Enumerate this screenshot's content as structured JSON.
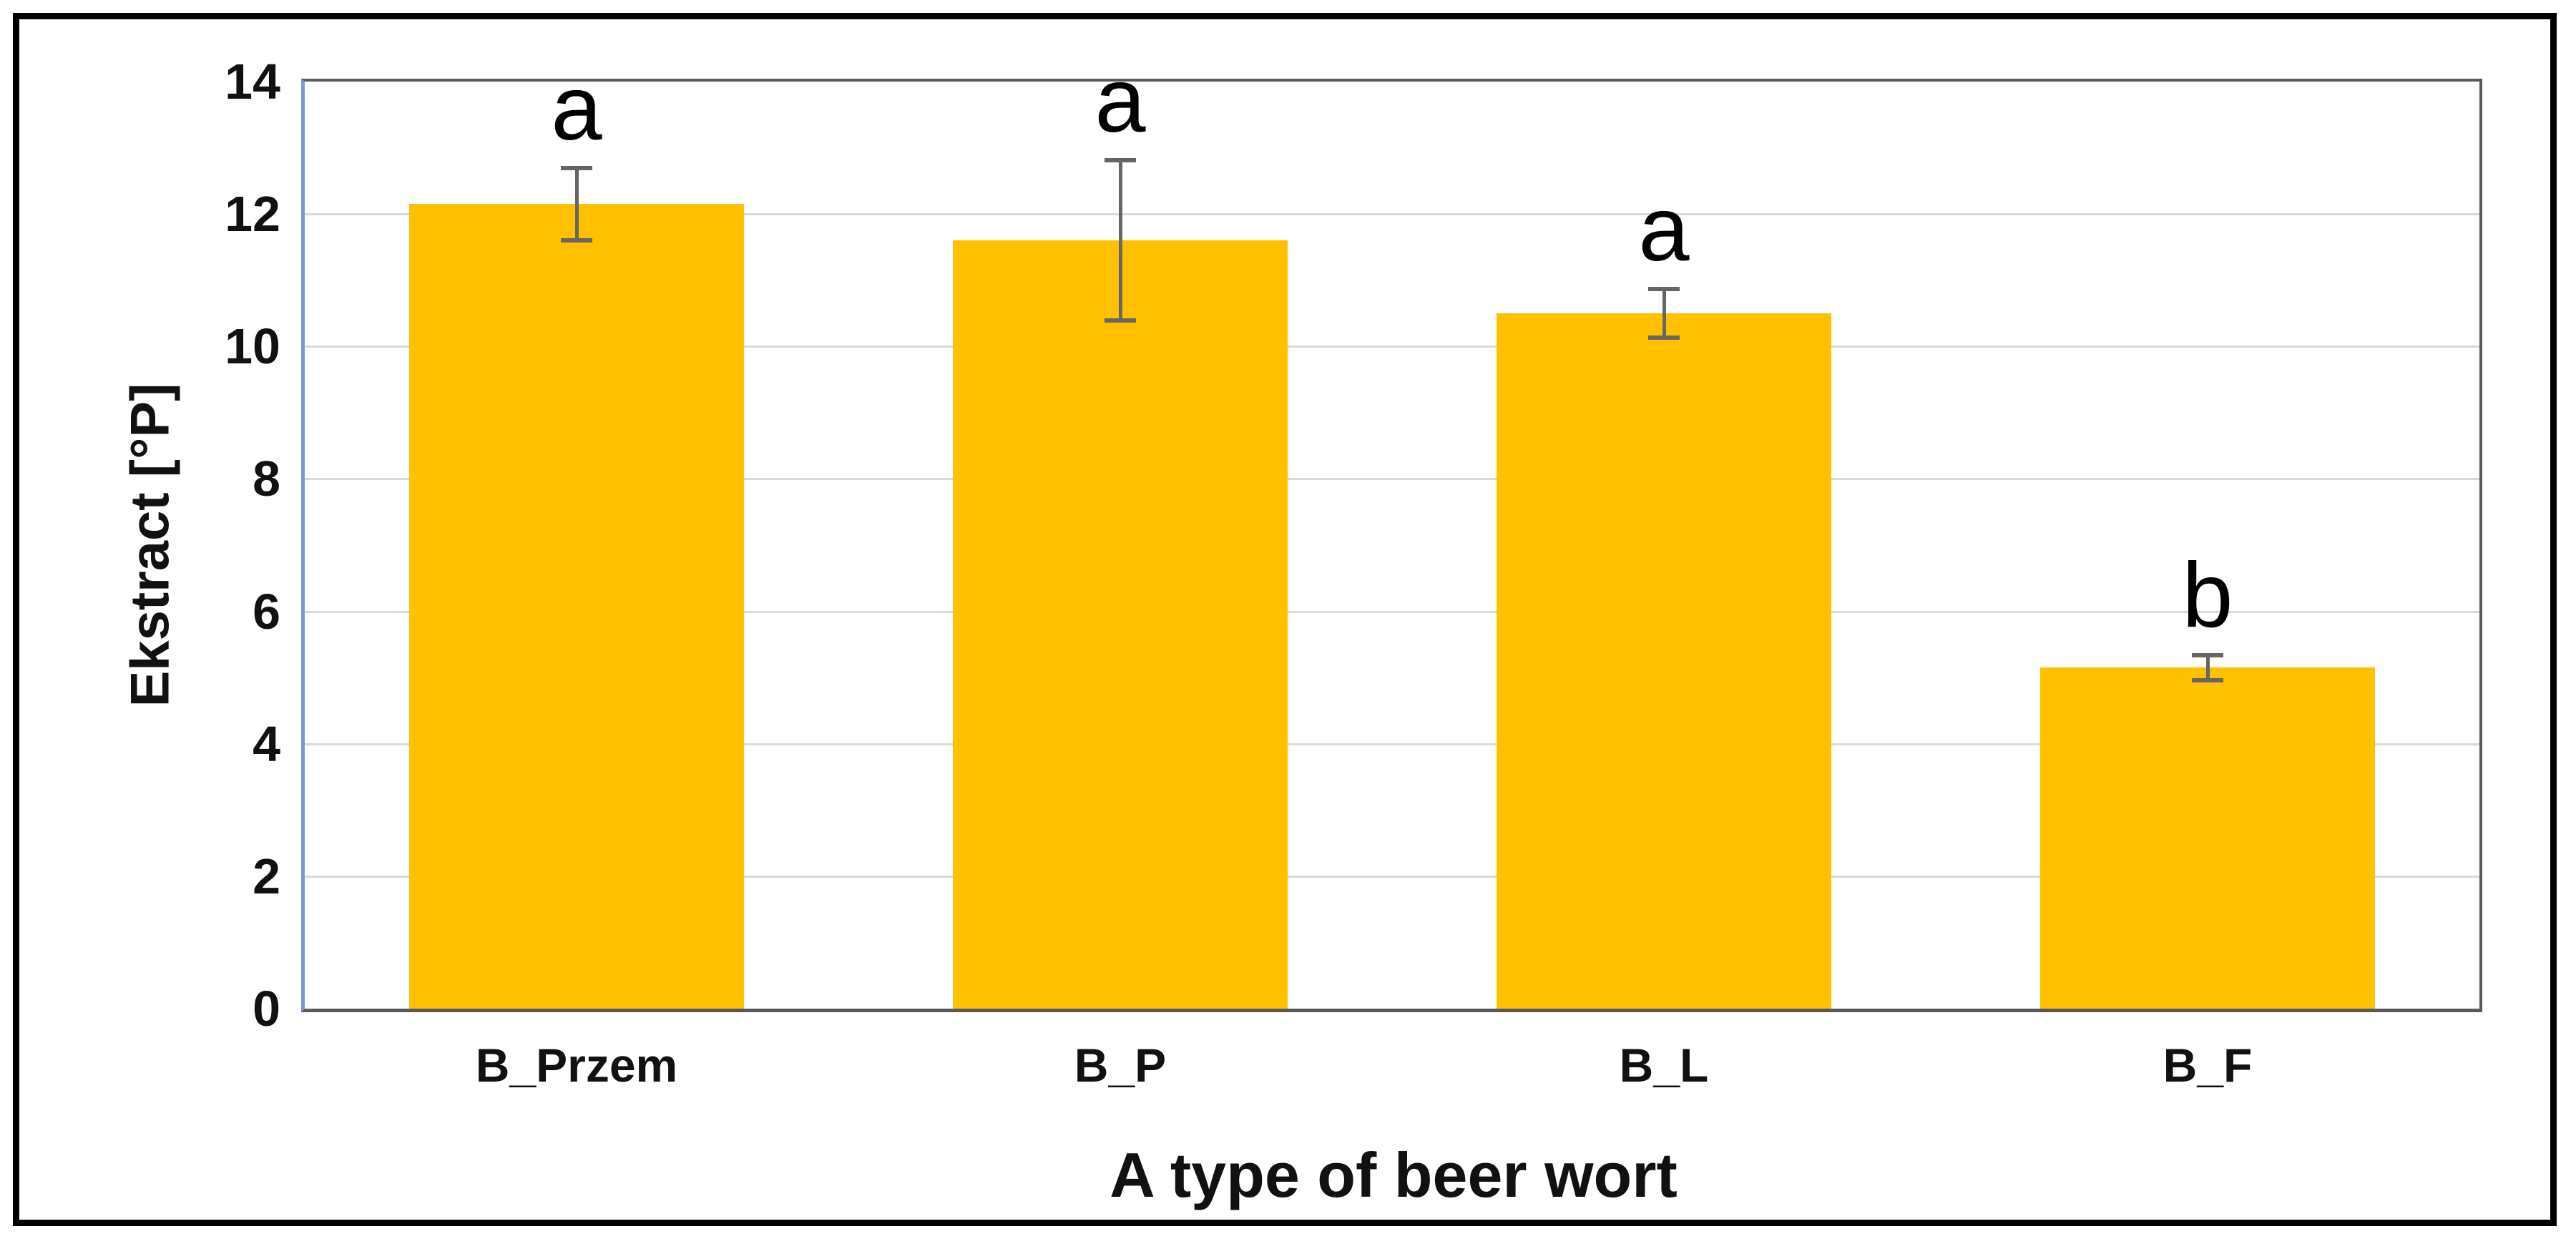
{
  "figure": {
    "background_color": "#FFFFFF",
    "outer_border_color": "#000000"
  },
  "chart_data": {
    "type": "bar",
    "title": "",
    "categories": [
      "B_Przem",
      "B_P",
      "B_L",
      "B_F"
    ],
    "values": [
      12.15,
      11.6,
      10.5,
      5.15
    ],
    "error_bars": [
      0.58,
      1.24,
      0.4,
      0.22
    ],
    "significance_letters": [
      "a",
      "a",
      "a",
      "b"
    ],
    "xlabel": "A type of beer wort",
    "ylabel": "Ekstract [°P]",
    "ylim": [
      0,
      14
    ],
    "yticks": [
      0,
      2,
      4,
      6,
      8,
      10,
      12,
      14
    ],
    "grid": true,
    "legend": "none",
    "bar_color": "#FFC000",
    "gridline_color": "#D9D9D9",
    "axis_line_color": "#595959",
    "y_axis_line_color": "#7C9CC8",
    "error_bar_color": "#666666",
    "text_color": "#111111"
  }
}
